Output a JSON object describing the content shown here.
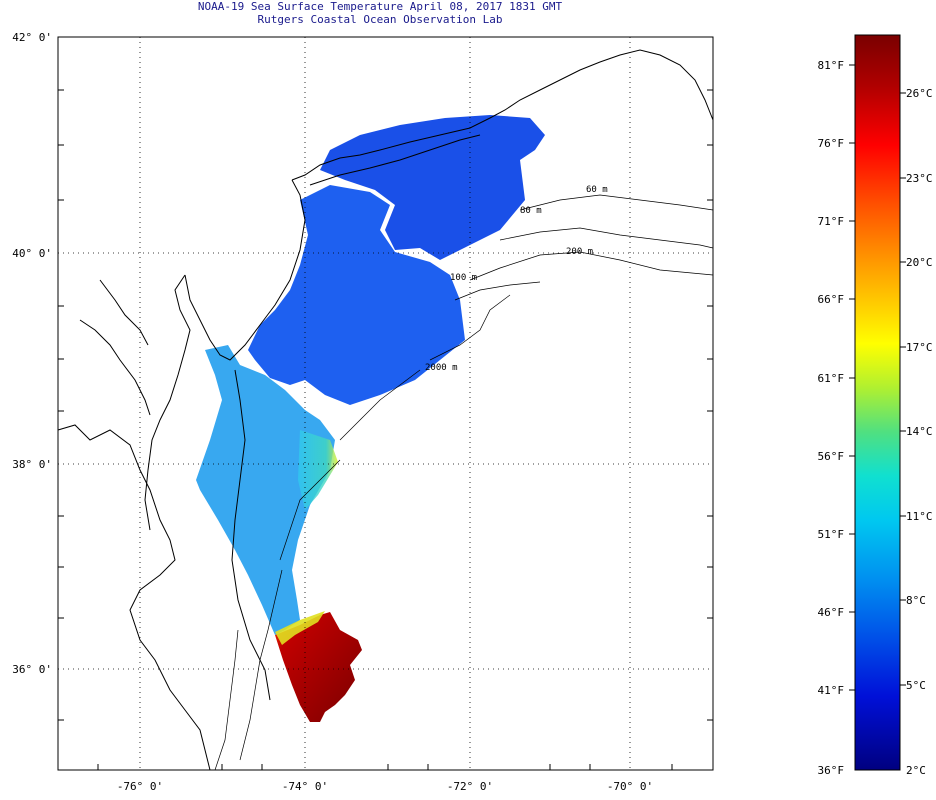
{
  "header": {
    "title_line1": "NOAA-19 Sea Surface Temperature April 08, 2017 1831 GMT",
    "title_line2": "Rutgers Coastal Ocean Observation Lab"
  },
  "map": {
    "lat_labels": [
      "42° 0'",
      "40° 0'",
      "38° 0'",
      "36° 0'"
    ],
    "lon_labels": [
      "-76° 0'",
      "-74° 0'",
      "-72° 0'",
      "-70° 0'"
    ],
    "contour_labels": [
      "60 m",
      "80 m",
      "100 m",
      "200 m",
      "2000 m"
    ]
  },
  "colorbar": {
    "fahrenheit_labels": [
      "81°F",
      "76°F",
      "71°F",
      "66°F",
      "61°F",
      "56°F",
      "51°F",
      "46°F",
      "41°F",
      "36°F"
    ],
    "celsius_labels": [
      "26°C",
      "23°C",
      "20°C",
      "17°C",
      "14°C",
      "11°C",
      "8°C",
      "5°C",
      "2°C"
    ],
    "colors": [
      "#7a0000",
      "#c00000",
      "#ff0000",
      "#ff5000",
      "#ff9a00",
      "#ffd000",
      "#ffff00",
      "#c0f020",
      "#60e060",
      "#20e0c0",
      "#00e0f0",
      "#00b0f0",
      "#0070f0",
      "#0040e0",
      "#0000d0",
      "#000090"
    ]
  }
}
